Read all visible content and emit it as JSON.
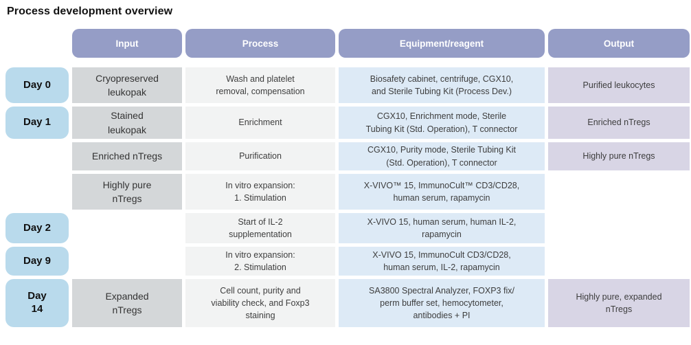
{
  "title": "Process development overview",
  "colors": {
    "header_pill": "#959dc6",
    "day_badge": "#b9daec",
    "input_cell": "#d4d7d9",
    "process_cell": "#f2f3f3",
    "equipment_cell": "#ddeaf6",
    "output_cell": "#d8d5e5"
  },
  "columns": {
    "input": "Input",
    "process": "Process",
    "equipment": "Equipment/reagent",
    "output": "Output"
  },
  "rows": [
    {
      "day": "Day 0",
      "input": "Cryopreserved\nleukopak",
      "process": "Wash and platelet\nremoval, compensation",
      "equipment": "Biosafety cabinet, centrifuge, CGX10,\nand Sterile Tubing Kit (Process Dev.)",
      "output": "Purified leukocytes"
    },
    {
      "day": "Day 1",
      "input": "Stained\nleukopak",
      "process": "Enrichment",
      "equipment": "CGX10, Enrichment mode, Sterile\nTubing Kit (Std. Operation), T connector",
      "output": "Enriched nTregs"
    },
    {
      "day": "",
      "input": "Enriched nTregs",
      "process": "Purification",
      "equipment": "CGX10, Purity mode, Sterile Tubing Kit\n(Std. Operation), T connector",
      "output": "Highly pure nTregs"
    },
    {
      "day": "",
      "input": "Highly pure\nnTregs",
      "process": "In vitro expansion:\n1. Stimulation",
      "equipment": "X-VIVO™ 15, ImmunoCult™ CD3/CD28,\nhuman serum, rapamycin",
      "output": ""
    },
    {
      "day": "Day 2",
      "input": "",
      "process": "Start of IL-2\nsupplementation",
      "equipment": "X-VIVO 15, human serum, human IL-2,\nrapamycin",
      "output": ""
    },
    {
      "day": "Day 9",
      "input": "",
      "process": "In vitro expansion:\n2. Stimulation",
      "equipment": "X-VIVO 15, ImmunoCult CD3/CD28,\nhuman serum, IL-2, rapamycin",
      "output": ""
    },
    {
      "day": "Day\n14",
      "input": "Expanded\nnTregs",
      "process": "Cell count, purity and\nviability check, and Foxp3\nstaining",
      "equipment": "SA3800 Spectral Analyzer, FOXP3 fix/\nperm buffer set, hemocytometer,\nantibodies + PI",
      "output": "Highly pure, expanded\nnTregs"
    }
  ]
}
